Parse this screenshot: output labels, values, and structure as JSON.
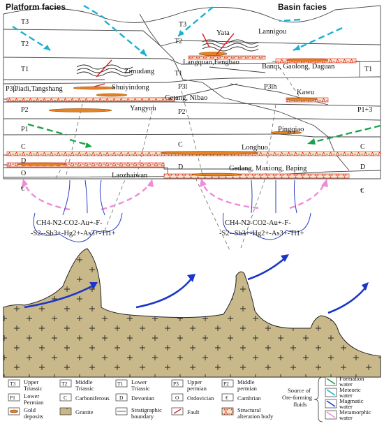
{
  "headers": {
    "platform": "Platform facies",
    "basin": "Basin facies"
  },
  "strata_labels": {
    "t3_left": "T3",
    "t2_left": "T2",
    "t1_left": "T1",
    "p3b_left": "P3β",
    "p2_left": "P2",
    "p1_left": "P1",
    "c_left": "C",
    "d_left": "D",
    "o_left": "O",
    "cam_left": "€",
    "t3_mid": "T3",
    "t2_mid": "T2",
    "t1_mid": "T1",
    "p3l_mid": "P3l",
    "p2_mid": "P2",
    "c_mid": "C",
    "d_mid": "D",
    "p3lh": "P3lh",
    "t1_right": "T1",
    "p13_right": "P1+3",
    "c_right": "C",
    "d_right": "D",
    "cam_right": "€"
  },
  "localities": {
    "yata": "Yata",
    "lannigou": "Lannigou",
    "zimudang": "Zimudang",
    "langquan": "Langquan,Fengbao",
    "banqi": "Banqi, Gaolong, Daguan",
    "jiadi": "Jiadi,Tangshang",
    "shuiyindong": "Shuiyindong",
    "getang": "Getang, Nibao",
    "kawu": "Kawu",
    "yangyou": "Yangyou",
    "pingqiao": "Pingqiao",
    "longhuo": "Longhuo",
    "laozhaiwan": "Laozhaiwan",
    "gedang": "Gedang, Maxiong, Baping"
  },
  "fluids": {
    "left_line1": "CH4-N2-CO2-Au+-F-",
    "left_line2": "-S2--Sb3+-Hg2+-As3+-Tl1+",
    "right_line1": "CH4-N2-CO2-Au+-F-",
    "right_line2": "-S2--Sb3+-Hg2+-As3+-Tl1+"
  },
  "legend": {
    "t3_sym": "T3",
    "t3_label": [
      "Upper",
      "Triassic"
    ],
    "t2_sym": "T2",
    "t2_label": [
      "Middle",
      "Triassic"
    ],
    "t1_sym": "T1",
    "t1_label": [
      "Lower",
      "Triassic"
    ],
    "p3_sym": "P3",
    "p3_label": [
      "Upper",
      "permian"
    ],
    "p2_sym": "P2",
    "p2_label": [
      "Middle",
      "permian"
    ],
    "p1_sym": "P1",
    "p1_label": [
      "Lower",
      "Permian"
    ],
    "c_sym": "C",
    "c_label": "Carboniferous",
    "d_sym": "D",
    "d_label": "Devonian",
    "o_sym": "O",
    "o_label": "Ordovician",
    "cam_sym": "€",
    "cam_label": "Cambrian",
    "gold_label": [
      "Gold",
      "deposits"
    ],
    "granite_label": "Granite",
    "boundary_label": [
      "Stratigraphic",
      "boundary"
    ],
    "fault_label": "Fault",
    "alteration_label": [
      "Structural",
      "alteration body"
    ],
    "source_label": [
      "Source of",
      "Ore-forming",
      "fluids"
    ],
    "formation_label": [
      "Formation",
      "water"
    ],
    "meteoric_label": [
      "Meteoric",
      "water"
    ],
    "magmatic_label": [
      "Magmatic",
      "water"
    ],
    "metamorphic_label": [
      "Metamorphic",
      "water"
    ]
  },
  "colors": {
    "formation_water": "#1aa34a",
    "meteoric_water": "#1ab0d0",
    "magmatic_water": "#1a35c8",
    "metamorphic_water": "#f08ad8",
    "fault": "#e02020",
    "gold": "#e8821e",
    "granite": "#c9b98a",
    "alteration": "#e83030"
  }
}
